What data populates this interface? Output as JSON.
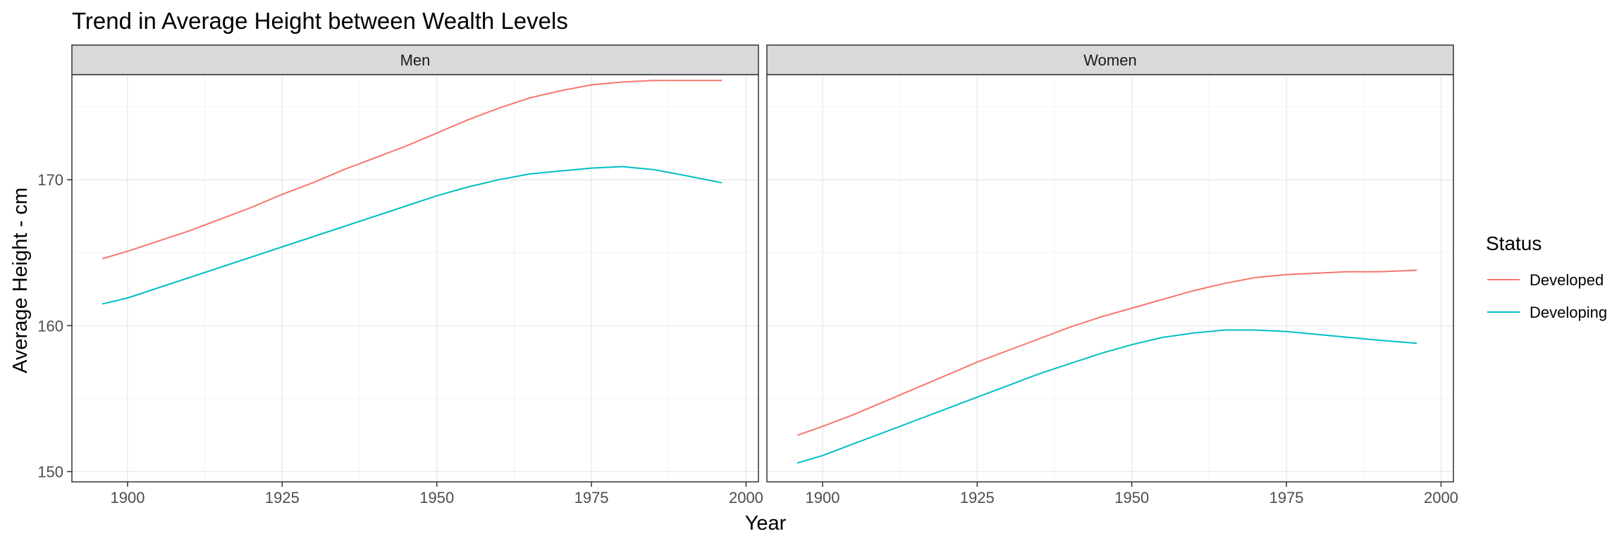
{
  "chart_data": {
    "type": "line",
    "title": "Trend in Average Height between Wealth Levels",
    "xlabel": "Year",
    "ylabel": "Average Height - cm",
    "xlim": [
      1891,
      2002
    ],
    "ylim": [
      149.3,
      177.2
    ],
    "x_ticks": [
      "1900",
      "1925",
      "1950",
      "1975",
      "2000"
    ],
    "y_ticks": [
      "150",
      "160",
      "170"
    ],
    "grid": true,
    "legend": {
      "title": "Status",
      "position": "right",
      "entries": [
        "Developed",
        "Developing"
      ]
    },
    "colors": {
      "Developed": "#F8766D",
      "Developing": "#00BFC4"
    },
    "panels": [
      {
        "name": "Men",
        "series": [
          {
            "name": "Developed",
            "x": [
              1896,
              1900,
              1905,
              1910,
              1915,
              1920,
              1925,
              1930,
              1935,
              1940,
              1945,
              1950,
              1955,
              1960,
              1965,
              1970,
              1975,
              1980,
              1985,
              1990,
              1996
            ],
            "y": [
              164.6,
              165.1,
              165.8,
              166.5,
              167.3,
              168.1,
              169.0,
              169.8,
              170.7,
              171.5,
              172.3,
              173.2,
              174.1,
              174.9,
              175.6,
              176.1,
              176.5,
              176.7,
              176.8,
              176.8,
              176.8
            ]
          },
          {
            "name": "Developing",
            "x": [
              1896,
              1900,
              1905,
              1910,
              1915,
              1920,
              1925,
              1930,
              1935,
              1940,
              1945,
              1950,
              1955,
              1960,
              1965,
              1970,
              1975,
              1980,
              1985,
              1990,
              1996
            ],
            "y": [
              161.5,
              161.9,
              162.6,
              163.3,
              164.0,
              164.7,
              165.4,
              166.1,
              166.8,
              167.5,
              168.2,
              168.9,
              169.5,
              170.0,
              170.4,
              170.6,
              170.8,
              170.9,
              170.7,
              170.3,
              169.8
            ]
          }
        ]
      },
      {
        "name": "Women",
        "series": [
          {
            "name": "Developed",
            "x": [
              1896,
              1900,
              1905,
              1910,
              1915,
              1920,
              1925,
              1930,
              1935,
              1940,
              1945,
              1950,
              1955,
              1960,
              1965,
              1970,
              1975,
              1980,
              1985,
              1990,
              1996
            ],
            "y": [
              152.5,
              153.1,
              153.9,
              154.8,
              155.7,
              156.6,
              157.5,
              158.3,
              159.1,
              159.9,
              160.6,
              161.2,
              161.8,
              162.4,
              162.9,
              163.3,
              163.5,
              163.6,
              163.7,
              163.7,
              163.8
            ]
          },
          {
            "name": "Developing",
            "x": [
              1896,
              1900,
              1905,
              1910,
              1915,
              1920,
              1925,
              1930,
              1935,
              1940,
              1945,
              1950,
              1955,
              1960,
              1965,
              1970,
              1975,
              1980,
              1985,
              1990,
              1996
            ],
            "y": [
              150.6,
              151.1,
              151.9,
              152.7,
              153.5,
              154.3,
              155.1,
              155.9,
              156.7,
              157.4,
              158.1,
              158.7,
              159.2,
              159.5,
              159.7,
              159.7,
              159.6,
              159.4,
              159.2,
              159.0,
              158.8
            ]
          }
        ]
      }
    ]
  }
}
